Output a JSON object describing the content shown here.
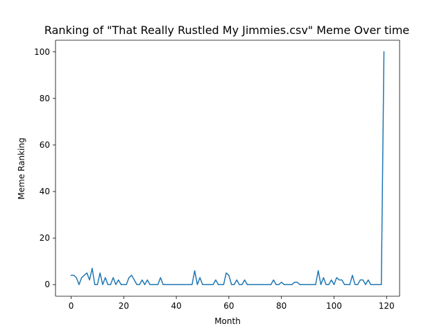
{
  "chart_data": {
    "type": "line",
    "title": "Ranking of \"That Really Rustled My Jimmies.csv\" Meme Over time",
    "xlabel": "Month",
    "ylabel": "Meme Ranking",
    "xlim": [
      -5.95,
      124.95
    ],
    "ylim": [
      -5,
      105
    ],
    "x_ticks": [
      0,
      20,
      40,
      60,
      80,
      100,
      120
    ],
    "y_ticks": [
      0,
      20,
      40,
      60,
      80,
      100
    ],
    "grid": false,
    "legend": "none",
    "series": [
      {
        "color": "#1f77b4",
        "x": [
          0,
          1,
          2,
          3,
          4,
          5,
          6,
          7,
          8,
          9,
          10,
          11,
          12,
          13,
          14,
          15,
          16,
          17,
          18,
          19,
          20,
          21,
          22,
          23,
          24,
          25,
          26,
          27,
          28,
          29,
          30,
          31,
          32,
          33,
          34,
          35,
          36,
          37,
          38,
          39,
          40,
          41,
          42,
          43,
          44,
          45,
          46,
          47,
          48,
          49,
          50,
          51,
          52,
          53,
          54,
          55,
          56,
          57,
          58,
          59,
          60,
          61,
          62,
          63,
          64,
          65,
          66,
          67,
          68,
          69,
          70,
          71,
          72,
          73,
          74,
          75,
          76,
          77,
          78,
          79,
          80,
          81,
          82,
          83,
          84,
          85,
          86,
          87,
          88,
          89,
          90,
          91,
          92,
          93,
          94,
          95,
          96,
          97,
          98,
          99,
          100,
          101,
          102,
          103,
          104,
          105,
          106,
          107,
          108,
          109,
          110,
          111,
          112,
          113,
          114,
          115,
          116,
          117,
          118,
          119
        ],
        "y": [
          4,
          4,
          3,
          0,
          3,
          4,
          5,
          2,
          7,
          0,
          0,
          5,
          0,
          3,
          0,
          0,
          3,
          0,
          2,
          0,
          0,
          0,
          3,
          4,
          2,
          0,
          0,
          2,
          0,
          2,
          0,
          0,
          0,
          0,
          3,
          0,
          0,
          0,
          0,
          0,
          0,
          0,
          0,
          0,
          0,
          0,
          0,
          6,
          0,
          3,
          0,
          0,
          0,
          0,
          0,
          2,
          0,
          0,
          0,
          5,
          4,
          0,
          0,
          2,
          0,
          0,
          2,
          0,
          0,
          0,
          0,
          0,
          0,
          0,
          0,
          0,
          0,
          2,
          0,
          0,
          1,
          0,
          0,
          0,
          0,
          1,
          1,
          0,
          0,
          0,
          0,
          0,
          0,
          0,
          6,
          0,
          3,
          0,
          0,
          2,
          0,
          3,
          2,
          2,
          0,
          0,
          0,
          4,
          0,
          0,
          2,
          2,
          0,
          2,
          0,
          0,
          0,
          0,
          0,
          100
        ]
      }
    ]
  }
}
